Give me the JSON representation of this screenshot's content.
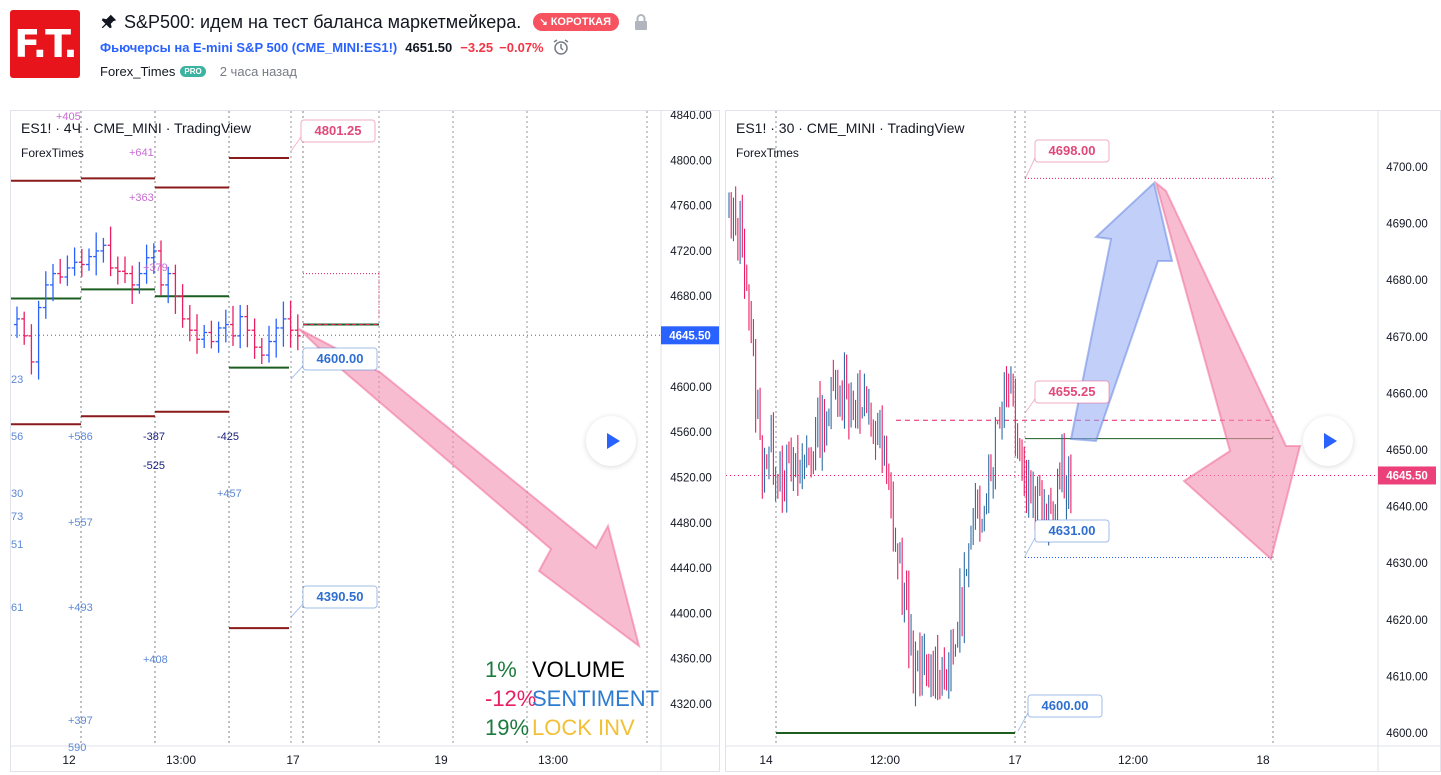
{
  "header": {
    "logo_text": "F.T.",
    "title": "S&P500: идем на тест баланса маркетмейкера.",
    "badge": "КОРОТКАЯ",
    "symbol_name": "Фьючерсы на E-mini S&P 500 (CME_MINI:ES1!)",
    "price": "4651.50",
    "change": "−3.25",
    "change_pct": "−0.07%",
    "author": "Forex_Times",
    "pro": "PRO",
    "time_ago": "2 часа назад"
  },
  "left_chart": {
    "symbol": "ES1! · 4Ч · CME_MINI · TradingView",
    "author": "ForexTimes",
    "price_axis": [
      "4840.00",
      "4800.00",
      "4760.00",
      "4720.00",
      "4680.00",
      "4645.50",
      "4600.00",
      "4560.00",
      "4520.00",
      "4480.00",
      "4440.00",
      "4400.00",
      "4360.00",
      "4320.00"
    ],
    "last_price": "4645.50",
    "time_axis": [
      "12",
      "13:00",
      "17",
      "19",
      "13:00"
    ],
    "labels": {
      "target_top": "4801.25",
      "level_mid": "4600.00",
      "target_low": "4390.50"
    },
    "volume_numbers": [
      "+405",
      "+641",
      "+363",
      "+379",
      "23",
      "56",
      "+586",
      "-387",
      "-425",
      "-525",
      "+457",
      "30",
      "73",
      "+557",
      "51",
      "61",
      "+493",
      "+408",
      "+397",
      "590"
    ],
    "stats": [
      {
        "pct": "1%",
        "label": "VOLUME",
        "pct_color": "#1b7a3e",
        "label_color": "#000000"
      },
      {
        "pct": "-12%",
        "label": "SENTIMENT",
        "pct_color": "#e91e63",
        "label_color": "#2e7bcf"
      },
      {
        "pct": "19%",
        "label": "LOCK INV",
        "pct_color": "#1b7a3e",
        "label_color": "#f2c037"
      }
    ]
  },
  "right_chart": {
    "symbol": "ES1! · 30 · CME_MINI · TradingView",
    "author": "ForexTimes",
    "price_axis": [
      "4700.00",
      "4690.00",
      "4680.00",
      "4670.00",
      "4660.00",
      "4650.00",
      "4645.50",
      "4640.00",
      "4630.00",
      "4620.00",
      "4610.00",
      "4600.00"
    ],
    "last_price": "4645.50",
    "time_axis": [
      "14",
      "12:00",
      "17",
      "12:00",
      "18"
    ],
    "labels": {
      "target_top": "4698.00",
      "level_mid": "4655.25",
      "level_low": "4631.00",
      "target_low": "4600.00"
    }
  },
  "colors": {
    "up": "#2962ff",
    "down": "#e91e63",
    "arrow_red": "#f48fb1",
    "arrow_blue": "#90a9f4",
    "support": "#1b5e20",
    "resistance": "#8b1a1a",
    "price_tag_blue": "#2962ff",
    "price_tag_pink": "#ec407a"
  }
}
